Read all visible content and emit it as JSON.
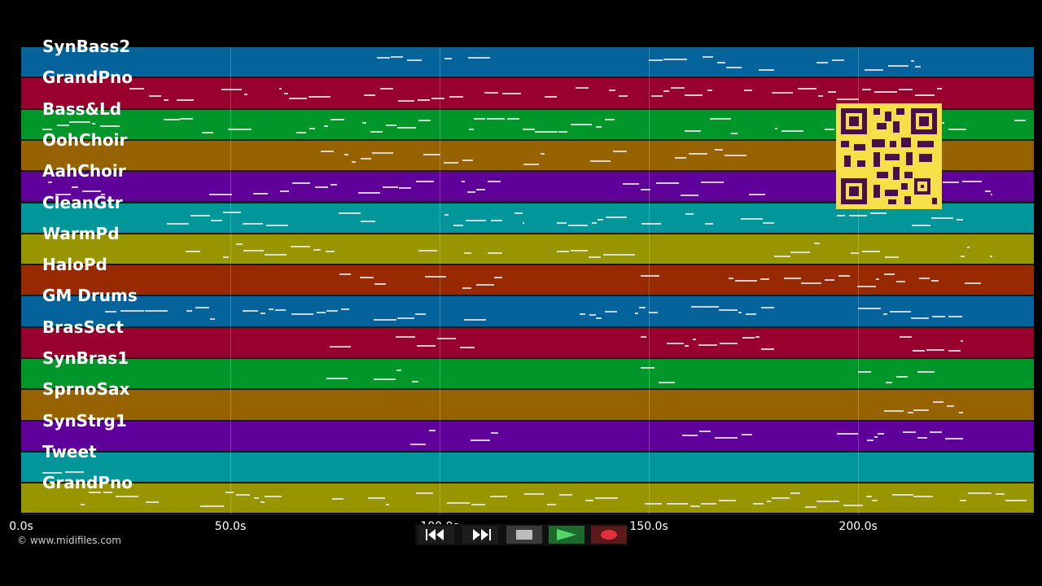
{
  "tracks": [
    {
      "name": "SynBass2",
      "color": "#03639a"
    },
    {
      "name": "GrandPno",
      "color": "#98002e"
    },
    {
      "name": "Bass&Ld",
      "color": "#00962a"
    },
    {
      "name": "OohChoir",
      "color": "#976200"
    },
    {
      "name": "AahChoir",
      "color": "#5f009a"
    },
    {
      "name": "CleanGtr",
      "color": "#00969a"
    },
    {
      "name": "WarmPd",
      "color": "#979600"
    },
    {
      "name": "HaloPd",
      "color": "#972a00"
    },
    {
      "name": "GM Drums",
      "color": "#03639a"
    },
    {
      "name": "BrasSect",
      "color": "#98002e"
    },
    {
      "name": "SynBras1",
      "color": "#00962a"
    },
    {
      "name": "SprnoSax",
      "color": "#976200"
    },
    {
      "name": "SynStrg1",
      "color": "#5f009a"
    },
    {
      "name": "Tweet",
      "color": "#00969a"
    },
    {
      "name": "GrandPno",
      "color": "#979600"
    }
  ],
  "timeline": {
    "ticks": [
      "0.0s",
      "50.0s",
      "100.0s",
      "150.0s",
      "200.0s"
    ],
    "tick_seconds": [
      0,
      50,
      100,
      150,
      200
    ],
    "range_seconds": [
      0,
      242
    ]
  },
  "footer": {
    "copyright": "© www.midifiles.com"
  },
  "transport": {
    "rewind_icon": "rewind-icon",
    "forward_icon": "fast-forward-icon",
    "stop_icon": "stop-icon",
    "play_icon": "play-icon",
    "record_icon": "record-icon"
  }
}
